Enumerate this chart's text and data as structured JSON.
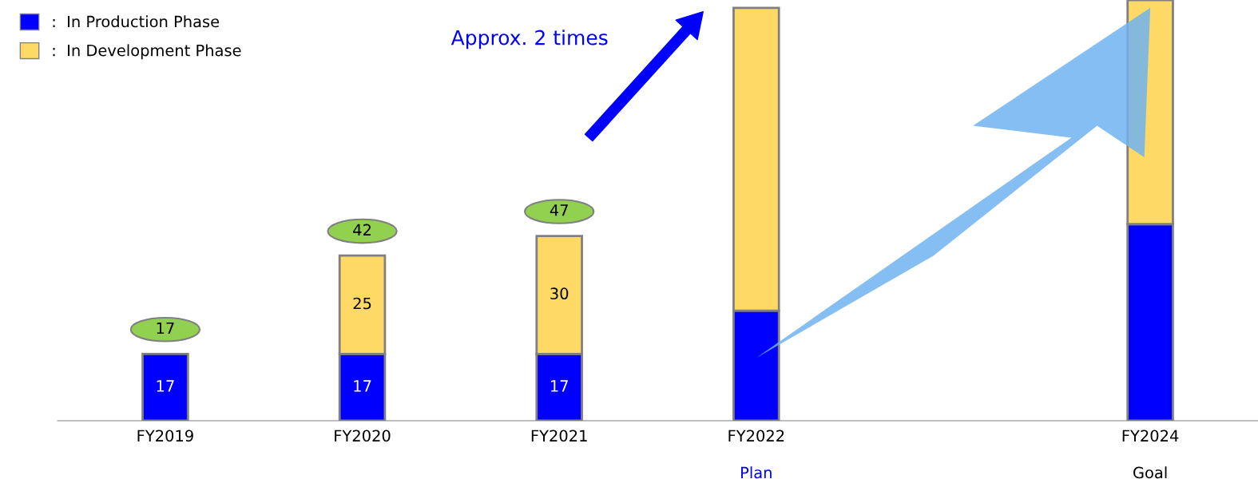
{
  "chart_data": {
    "type": "bar",
    "stacked": true,
    "categories": [
      "FY2019",
      "FY2020",
      "FY2021",
      "FY2022\nPlan",
      null,
      "FY2024\nGoal"
    ],
    "series": [
      {
        "name": ":  In Production Phase",
        "color": "#0000ff",
        "values": [
          17,
          17,
          17,
          28,
          null,
          50
        ],
        "value_labels": [
          "17",
          "17",
          "17",
          null,
          null,
          null
        ]
      },
      {
        "name": ":  In Development Phase",
        "color": "#ffd966",
        "values": [
          null,
          25,
          30,
          77,
          null,
          57
        ],
        "value_labels": [
          null,
          "25",
          "30",
          null,
          null,
          null
        ]
      }
    ],
    "totals": [
      "17",
      "42",
      "47",
      null,
      null,
      null
    ],
    "legend": "top left",
    "annotations": [
      "Approx. 2 times"
    ]
  }
}
